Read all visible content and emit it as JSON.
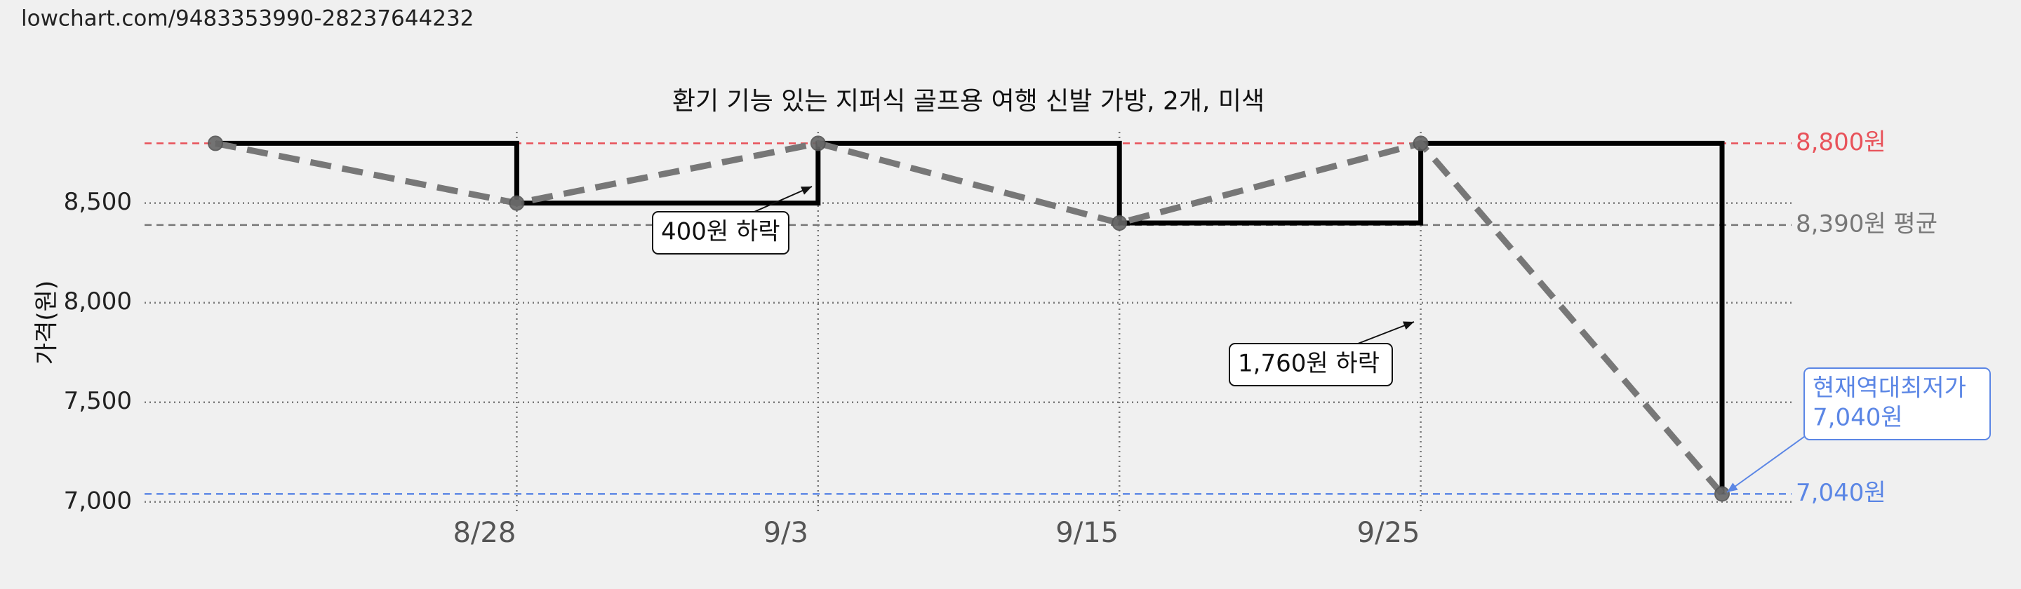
{
  "header": "lowchart.com/9483353990-28237644232",
  "chart_data": {
    "type": "line",
    "title": "환기 기능 있는 지퍼식 골프용 여행 신발 가방, 2개, 미색",
    "y_label": "가격(원)",
    "categories": [
      null,
      "8/28",
      "9/3",
      "9/15",
      "9/25",
      null
    ],
    "values": [
      8800,
      8500,
      8800,
      8400,
      8800,
      7040
    ],
    "step_color": "#000000",
    "line_color": "#777777",
    "ylim": [
      6950,
      8900
    ],
    "yticks": [
      {
        "value": 7000,
        "label": "7,000"
      },
      {
        "value": 7500,
        "label": "7,500"
      },
      {
        "value": 8000,
        "label": "8,000"
      },
      {
        "value": 8500,
        "label": "8,500"
      }
    ],
    "grid": true,
    "reference_lines": [
      {
        "value": 8800,
        "label": "8,800원",
        "color": "#e8525a"
      },
      {
        "value": 8390,
        "label": "8,390원 평균",
        "color": "#777777"
      },
      {
        "value": 7040,
        "label": "7,040원",
        "color": "#5b86e5"
      }
    ],
    "annotations": [
      {
        "lines": [
          "400원 하락"
        ]
      },
      {
        "lines": [
          "1,760원 하락"
        ]
      },
      {
        "lines": [
          "현재역대최저가",
          "7,040원"
        ],
        "color": "#5b86e5"
      }
    ]
  }
}
